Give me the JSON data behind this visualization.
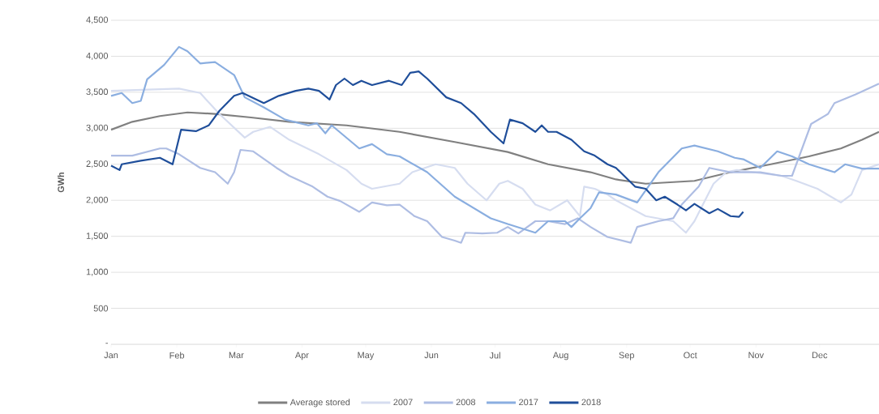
{
  "chart_data": {
    "type": "line",
    "ylabel": "GWh",
    "grid": "y",
    "legend": "bottom",
    "xlim": [
      "--01-01",
      "--12-29"
    ],
    "ylim": [
      0,
      4500
    ],
    "xticks": [
      {
        "value": "--01-01",
        "label": "Jan"
      },
      {
        "value": "--02-01",
        "label": "Feb"
      },
      {
        "value": "--03-01",
        "label": "Mar"
      },
      {
        "value": "--04-01",
        "label": "Apr"
      },
      {
        "value": "--05-01",
        "label": "May"
      },
      {
        "value": "--06-01",
        "label": "Jun"
      },
      {
        "value": "--07-01",
        "label": "Jul"
      },
      {
        "value": "--08-01",
        "label": "Aug"
      },
      {
        "value": "--09-01",
        "label": "Sep"
      },
      {
        "value": "--10-01",
        "label": "Oct"
      },
      {
        "value": "--11-01",
        "label": "Nov"
      },
      {
        "value": "--12-01",
        "label": "Dec"
      }
    ],
    "yticks": [
      {
        "value": 0,
        "label": "-"
      },
      {
        "value": 500,
        "label": "500"
      },
      {
        "value": 1000,
        "label": "1,000"
      },
      {
        "value": 1500,
        "label": "1,500"
      },
      {
        "value": 2000,
        "label": "2,000"
      },
      {
        "value": 2500,
        "label": "2,500"
      },
      {
        "value": 3000,
        "label": "3,000"
      },
      {
        "value": 3500,
        "label": "3,500"
      },
      {
        "value": 4000,
        "label": "4,000"
      },
      {
        "value": 4500,
        "label": "4,500"
      }
    ],
    "series": [
      {
        "name": "Average stored",
        "color": "#808080",
        "x": [
          "--01-01",
          "--01-11",
          "--01-24",
          "--02-06",
          "--02-19",
          "--03-08",
          "--03-26",
          "--04-22",
          "--05-17",
          "--06-12",
          "--07-07",
          "--07-26",
          "--08-15",
          "--08-27",
          "--09-10",
          "--10-03",
          "--10-20",
          "--11-08",
          "--11-26",
          "--12-11",
          "--12-21",
          "--12-29"
        ],
        "values": [
          2980,
          3090,
          3170,
          3220,
          3200,
          3150,
          3090,
          3040,
          2950,
          2810,
          2670,
          2500,
          2390,
          2290,
          2230,
          2270,
          2390,
          2500,
          2610,
          2720,
          2840,
          2950
        ]
      },
      {
        "name": "2007",
        "color": "#d6ddf0",
        "x": [
          "--01-01",
          "--02-02",
          "--02-12",
          "--02-21",
          "--03-05",
          "--03-09",
          "--03-17",
          "--03-26",
          "--04-09",
          "--04-22",
          "--04-29",
          "--05-04",
          "--05-17",
          "--05-23",
          "--06-03",
          "--06-12",
          "--06-18",
          "--06-27",
          "--07-03",
          "--07-07",
          "--07-14",
          "--07-20",
          "--07-27",
          "--08-04",
          "--08-10",
          "--08-12",
          "--08-17",
          "--08-23",
          "--08-27",
          "--09-10",
          "--09-23",
          "--09-29",
          "--10-03",
          "--10-08",
          "--10-12",
          "--10-18",
          "--10-23",
          "--10-31",
          "--11-13",
          "--11-20",
          "--11-30",
          "--12-11",
          "--12-16",
          "--12-21",
          "--12-29"
        ],
        "values": [
          3520,
          3550,
          3490,
          3200,
          2870,
          2950,
          3020,
          2840,
          2640,
          2420,
          2230,
          2160,
          2230,
          2390,
          2500,
          2450,
          2230,
          2000,
          2230,
          2270,
          2160,
          1940,
          1860,
          2000,
          1780,
          2190,
          2160,
          2080,
          2000,
          1780,
          1710,
          1550,
          1710,
          2000,
          2230,
          2390,
          2420,
          2390,
          2340,
          2270,
          2160,
          1970,
          2080,
          2420,
          2500
        ]
      },
      {
        "name": "2008",
        "color": "#aebde3",
        "x": [
          "--01-01",
          "--01-11",
          "--01-24",
          "--01-27",
          "--02-02",
          "--02-12",
          "--02-19",
          "--02-25",
          "--02-28",
          "--03-03",
          "--03-09",
          "--03-20",
          "--03-26",
          "--04-06",
          "--04-13",
          "--04-19",
          "--04-28",
          "--05-04",
          "--05-11",
          "--05-17",
          "--05-24",
          "--05-30",
          "--06-06",
          "--06-12",
          "--06-15",
          "--06-17",
          "--06-25",
          "--07-02",
          "--07-07",
          "--07-12",
          "--07-20",
          "--07-26",
          "--08-03",
          "--08-09",
          "--08-15",
          "--08-23",
          "--09-03",
          "--09-06",
          "--09-16",
          "--09-23",
          "--09-27",
          "--10-05",
          "--10-10",
          "--10-20",
          "--11-03",
          "--11-13",
          "--11-18",
          "--11-27",
          "--12-05",
          "--12-08",
          "--12-18",
          "--12-29"
        ],
        "values": [
          2620,
          2620,
          2720,
          2720,
          2640,
          2450,
          2390,
          2230,
          2390,
          2700,
          2680,
          2450,
          2340,
          2190,
          2050,
          1990,
          1840,
          1970,
          1930,
          1940,
          1780,
          1710,
          1490,
          1440,
          1410,
          1550,
          1540,
          1550,
          1630,
          1540,
          1710,
          1710,
          1670,
          1750,
          1630,
          1490,
          1410,
          1630,
          1710,
          1750,
          1940,
          2190,
          2450,
          2390,
          2390,
          2340,
          2340,
          3060,
          3200,
          3350,
          3470,
          3620
        ]
      },
      {
        "name": "2017",
        "color": "#8aaee0",
        "x": [
          "--01-01",
          "--01-06",
          "--01-11",
          "--01-15",
          "--01-18",
          "--01-26",
          "--02-02",
          "--02-06",
          "--02-12",
          "--02-19",
          "--02-28",
          "--03-05",
          "--03-14",
          "--03-24",
          "--04-04",
          "--04-08",
          "--04-12",
          "--04-15",
          "--04-28",
          "--05-04",
          "--05-11",
          "--05-17",
          "--05-30",
          "--06-12",
          "--06-29",
          "--07-07",
          "--07-20",
          "--07-26",
          "--08-03",
          "--08-06",
          "--08-10",
          "--08-15",
          "--08-19",
          "--08-27",
          "--09-06",
          "--09-16",
          "--09-27",
          "--10-03",
          "--10-14",
          "--10-22",
          "--10-26",
          "--11-03",
          "--11-11",
          "--11-18",
          "--11-26",
          "--12-08",
          "--12-13",
          "--12-21",
          "--12-29"
        ],
        "values": [
          3450,
          3490,
          3350,
          3380,
          3680,
          3880,
          4130,
          4070,
          3900,
          3920,
          3740,
          3430,
          3290,
          3120,
          3040,
          3070,
          2930,
          3040,
          2720,
          2780,
          2640,
          2610,
          2390,
          2050,
          1750,
          1670,
          1550,
          1710,
          1710,
          1630,
          1750,
          1890,
          2110,
          2080,
          1970,
          2390,
          2720,
          2760,
          2680,
          2590,
          2570,
          2450,
          2680,
          2610,
          2500,
          2390,
          2500,
          2440,
          2440
        ]
      },
      {
        "name": "2018",
        "color": "#1f4e9a",
        "x": [
          "--01-01",
          "--01-05",
          "--01-06",
          "--01-15",
          "--01-24",
          "--01-30",
          "--02-03",
          "--02-10",
          "--02-16",
          "--02-21",
          "--02-28",
          "--03-04",
          "--03-14",
          "--03-21",
          "--03-29",
          "--04-04",
          "--04-09",
          "--04-14",
          "--04-17",
          "--04-21",
          "--04-25",
          "--04-29",
          "--05-04",
          "--05-12",
          "--05-18",
          "--05-22",
          "--05-26",
          "--05-30",
          "--06-08",
          "--06-15",
          "--06-21",
          "--06-29",
          "--07-05",
          "--07-08",
          "--07-14",
          "--07-20",
          "--07-23",
          "--07-26",
          "--07-30",
          "--08-06",
          "--08-12",
          "--08-17",
          "--08-23",
          "--08-27",
          "--09-05",
          "--09-10",
          "--09-15",
          "--09-19",
          "--09-25",
          "--09-29",
          "--10-03",
          "--10-10",
          "--10-14",
          "--10-20",
          "--10-24",
          "--10-26"
        ],
        "values": [
          2480,
          2420,
          2500,
          2550,
          2590,
          2500,
          2980,
          2960,
          3040,
          3240,
          3450,
          3490,
          3350,
          3450,
          3520,
          3550,
          3520,
          3400,
          3600,
          3690,
          3600,
          3660,
          3600,
          3660,
          3600,
          3770,
          3790,
          3690,
          3430,
          3350,
          3200,
          2950,
          2790,
          3120,
          3070,
          2950,
          3040,
          2950,
          2950,
          2840,
          2680,
          2620,
          2500,
          2450,
          2190,
          2160,
          2000,
          2050,
          1940,
          1860,
          1950,
          1820,
          1880,
          1780,
          1770,
          1840
        ]
      }
    ]
  }
}
